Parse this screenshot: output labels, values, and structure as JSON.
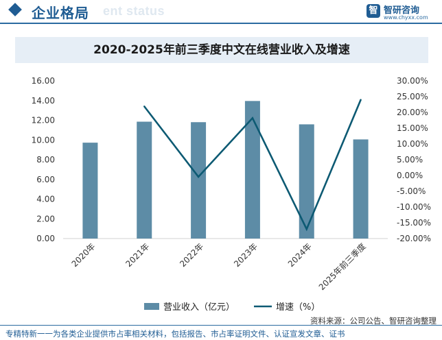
{
  "header": {
    "section_title": "企业格局",
    "ghost_text": "ent status",
    "logo": {
      "mark": "智",
      "name": "智研咨询",
      "url": "www.chyxx.com"
    }
  },
  "chart_data": {
    "type": "bar+line",
    "title": "2020-2025年前三季度中文在线营业收入及增速",
    "categories": [
      "2020年",
      "2021年",
      "2022年",
      "2023年",
      "2024年",
      "2025年前三季度"
    ],
    "series": [
      {
        "name": "营业收入（亿元）",
        "type": "bar",
        "axis": "left",
        "values": [
          9.73,
          11.86,
          11.81,
          13.96,
          11.59,
          10.06
        ]
      },
      {
        "name": "增速（%）",
        "type": "line",
        "axis": "right",
        "values": [
          null,
          21.9,
          -0.42,
          18.2,
          -17.0,
          24.0
        ]
      }
    ],
    "y_left": {
      "min": 0,
      "max": 16,
      "step": 2,
      "ticks": [
        "0.00",
        "2.00",
        "4.00",
        "6.00",
        "8.00",
        "10.00",
        "12.00",
        "14.00",
        "16.00"
      ]
    },
    "y_right": {
      "min": -20,
      "max": 30,
      "step": 5,
      "ticks": [
        "-20.00%",
        "-15.00%",
        "-10.00%",
        "-5.00%",
        "0.00%",
        "5.00%",
        "10.00%",
        "15.00%",
        "20.00%",
        "25.00%",
        "30.00%"
      ]
    },
    "legend_position": "bottom",
    "grid": false,
    "colors": {
      "bar": "#5d8ca6",
      "line": "#0d5a73"
    }
  },
  "footer": {
    "source": "资料来源：公司公告、智研咨询整理",
    "note": "专精特新一一为各类企业提供市占率相关材料，包括报告、市占率证明文件、认证宣发文章、证书"
  }
}
